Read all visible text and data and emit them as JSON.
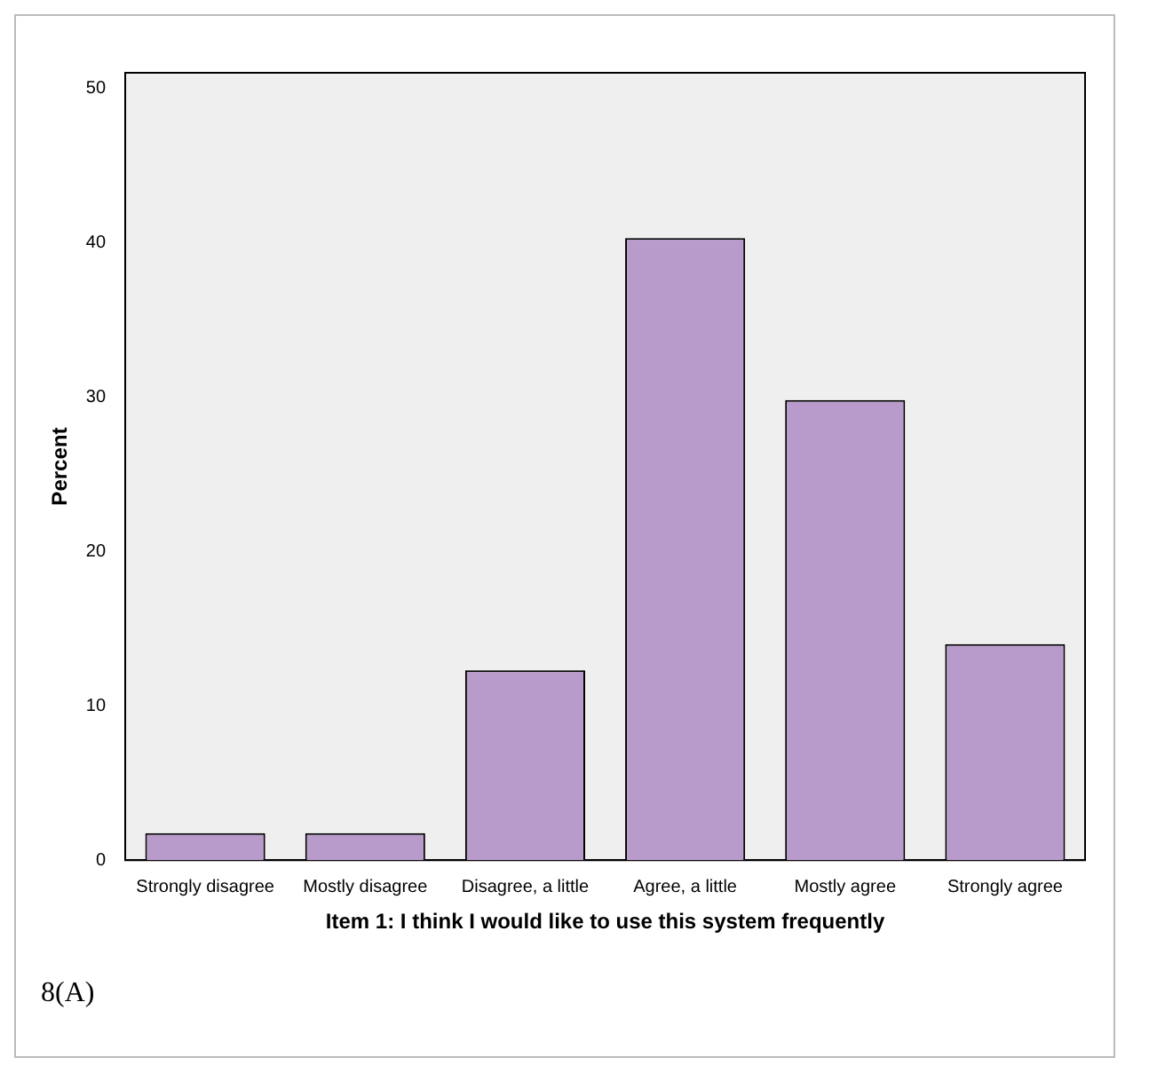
{
  "chart_data": {
    "type": "bar",
    "xlabel": "Item 1: I think I would like to use this system frequently",
    "ylabel": "Percent",
    "categories": [
      "Strongly disagree",
      "Mostly disagree",
      "Disagree, a little",
      "Agree, a little",
      "Mostly agree",
      "Strongly agree"
    ],
    "values": [
      1.75,
      1.75,
      12.3,
      40.3,
      29.8,
      14.0
    ],
    "color": "#b89bca",
    "ylim": [
      0,
      51
    ],
    "yticks": [
      0,
      10,
      20,
      30,
      40,
      50
    ],
    "grid": false,
    "legend": false,
    "annotations": [
      "8(A)"
    ]
  }
}
